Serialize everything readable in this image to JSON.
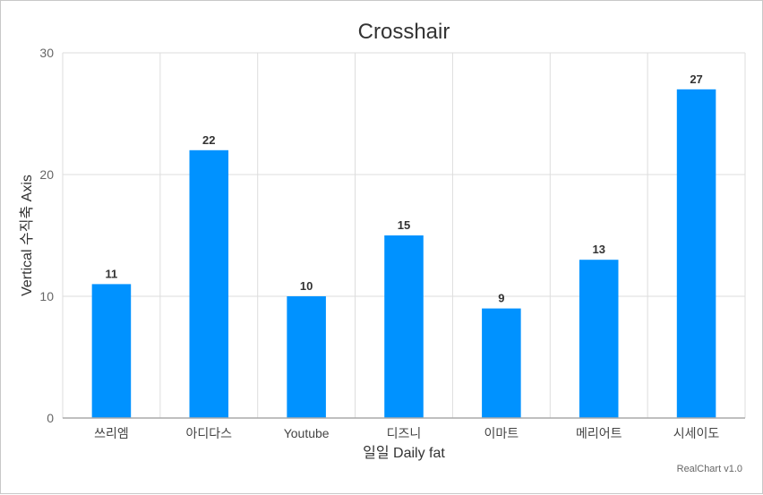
{
  "chart_data": {
    "type": "bar",
    "title": "Crosshair",
    "xlabel": "일일 Daily fat",
    "ylabel": "Vertical 수직축 Axis",
    "categories": [
      "쓰리엠",
      "아디다스",
      "Youtube",
      "디즈니",
      "이마트",
      "메리어트",
      "시세이도"
    ],
    "values": [
      11,
      22,
      10,
      15,
      9,
      13,
      27
    ],
    "ylim": [
      0,
      30
    ],
    "yticks": [
      0,
      10,
      20,
      30
    ],
    "grid": true,
    "bar_color": "#0092ff",
    "show_data_labels": true
  },
  "credit": "RealChart v1.0"
}
